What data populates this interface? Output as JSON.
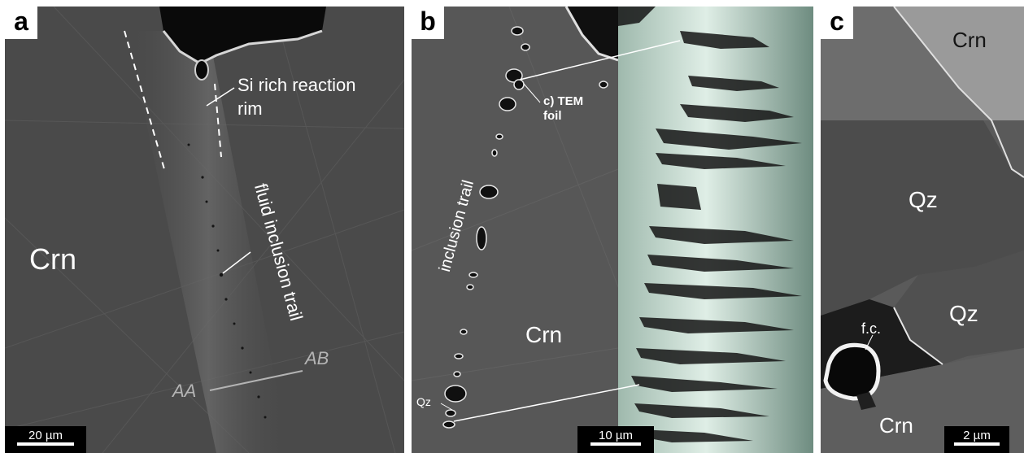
{
  "panels": {
    "a": {
      "label": "a",
      "annotations": {
        "si_rim_line1": "Si rich reaction",
        "si_rim_line2": "rim",
        "fluid_trail": "fluid inclusion trail",
        "crn": "Crn",
        "ab": "AB",
        "aa": "AA"
      },
      "scale": "20 µm"
    },
    "b": {
      "label": "b",
      "annotations": {
        "tem_line1": "c) TEM",
        "tem_line2": "foil",
        "inclusion_trail": "inclusion trail",
        "crn": "Crn",
        "qz": "Qz"
      },
      "scale": "10 µm"
    },
    "c": {
      "label": "c",
      "annotations": {
        "crn_top": "Crn",
        "qz_upper": "Qz",
        "qz_lower": "Qz",
        "fc": "f.c.",
        "crn_bottom": "Crn"
      },
      "scale": "2 µm"
    }
  },
  "colors": {
    "annotation": "#ffffff",
    "annotation_gray": "#b4b4b4",
    "label_bg": "#ffffff",
    "label_text": "#000000"
  }
}
